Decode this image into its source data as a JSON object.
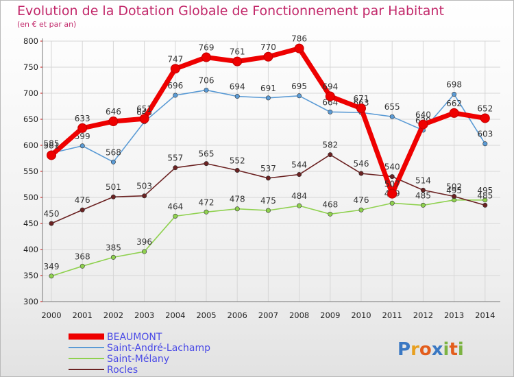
{
  "chart_data": {
    "type": "line",
    "title": "Evolution de la Dotation Globale de Fonctionnement par Habitant",
    "subtitle": "(en € et par an)",
    "categories": [
      "2000",
      "2001",
      "2002",
      "2003",
      "2004",
      "2005",
      "2006",
      "2007",
      "2008",
      "2009",
      "2010",
      "2011",
      "2012",
      "2013",
      "2014"
    ],
    "y_ticks": [
      "300",
      "350",
      "400",
      "450",
      "500",
      "550",
      "600",
      "650",
      "700",
      "750",
      "800"
    ],
    "ylim": [
      300,
      800
    ],
    "grid": true,
    "legend_position": "bottom-left",
    "series": [
      {
        "name": "BEAUMONT",
        "color": "#ee0000",
        "values": [
          581,
          633,
          646,
          651,
          747,
          769,
          761,
          770,
          786,
          694,
          671,
          507,
          640,
          662,
          652
        ],
        "labels": [
          "581",
          "633",
          "646",
          "651",
          "747",
          "769",
          "761",
          "770",
          "786",
          "694",
          "671",
          "507",
          "640",
          "662",
          "652"
        ]
      },
      {
        "name": "Saint-André-Lachamp",
        "color": "#5b9bd5",
        "values": [
          585,
          599,
          568,
          645,
          696,
          706,
          694,
          691,
          695,
          664,
          663,
          655,
          629,
          698,
          603
        ],
        "labels": [
          "585",
          "599",
          "568",
          "645",
          "696",
          "706",
          "694",
          "691",
          "695",
          "664",
          "663",
          "655",
          "629",
          "698",
          "603"
        ]
      },
      {
        "name": "Saint-Mélany",
        "color": "#8fd14f",
        "values": [
          349,
          368,
          385,
          396,
          464,
          472,
          478,
          475,
          484,
          468,
          476,
          489,
          485,
          495,
          495
        ],
        "labels": [
          "349",
          "368",
          "385",
          "396",
          "464",
          "472",
          "478",
          "475",
          "484",
          "468",
          "476",
          "489",
          "485",
          "495",
          "495"
        ]
      },
      {
        "name": "Rocles",
        "color": "#6b2222",
        "values": [
          450,
          476,
          501,
          503,
          557,
          565,
          552,
          537,
          544,
          582,
          546,
          540,
          514,
          502,
          485
        ],
        "labels": [
          "450",
          "476",
          "501",
          "503",
          "557",
          "565",
          "552",
          "537",
          "544",
          "582",
          "546",
          "540",
          "514",
          "502",
          "485"
        ]
      }
    ]
  },
  "brand": {
    "text": "Proxiti",
    "colors": [
      "#3a78c3",
      "#e8a020",
      "#e35d1c",
      "#3a78c3",
      "#7cb342",
      "#e35d1c",
      "#7cb342"
    ]
  }
}
